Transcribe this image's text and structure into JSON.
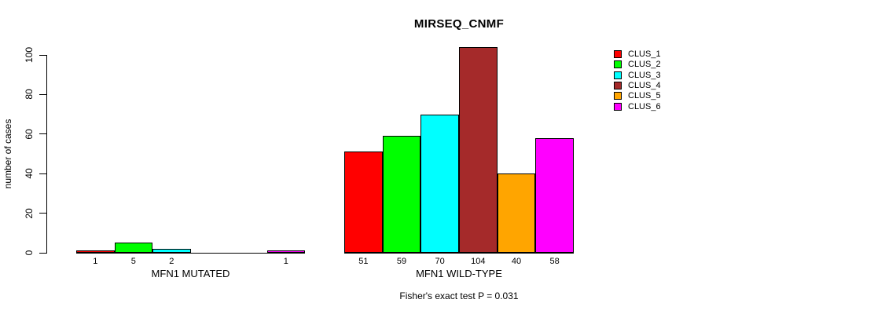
{
  "chart": {
    "title": "MIRSEQ_CNMF",
    "ylabel": "number of cases",
    "footnote": "Fisher's exact test P = 0.031"
  },
  "chart_data": {
    "type": "bar",
    "title": "MIRSEQ_CNMF",
    "xlabel": "",
    "ylabel": "number of cases",
    "footnote": "Fisher's exact test P = 0.031",
    "ylim": [
      0,
      100
    ],
    "yticks": [
      0,
      20,
      40,
      60,
      80,
      100
    ],
    "grid": false,
    "legend_position": "right",
    "categories": [
      "CLUS_1",
      "CLUS_2",
      "CLUS_3",
      "CLUS_4",
      "CLUS_5",
      "CLUS_6"
    ],
    "colors": [
      "#FF0000",
      "#00FF00",
      "#00FFFF",
      "#A52A2A",
      "#FFA500",
      "#FF00FF"
    ],
    "groups": [
      {
        "label": "MFN1 MUTATED",
        "values": [
          1,
          5,
          2,
          0,
          0,
          1
        ]
      },
      {
        "label": "MFN1 WILD-TYPE",
        "values": [
          51,
          59,
          70,
          104,
          40,
          58
        ]
      }
    ]
  }
}
